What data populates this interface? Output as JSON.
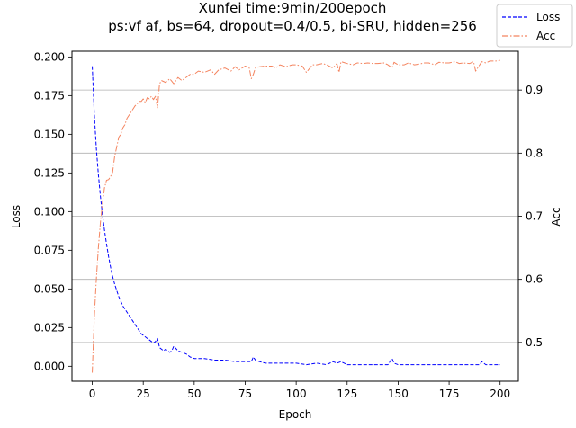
{
  "chart_data": {
    "type": "line",
    "title": "Xunfei time:9min/200epoch",
    "subtitle": "ps:vf af, bs=64, dropout=0.4/0.5, bi-SRU, hidden=256",
    "xlabel": "Epoch",
    "ylabel_left": "Loss",
    "ylabel_right": "Acc",
    "xlim": [
      -9.95,
      208.95
    ],
    "ylim_left": [
      -0.0097,
      0.2037
    ],
    "ylim_right": [
      0.4385,
      0.9615
    ],
    "x_ticks": [
      "0",
      "25",
      "50",
      "75",
      "100",
      "125",
      "150",
      "175",
      "200"
    ],
    "y_ticks_left": [
      "0.000",
      "0.025",
      "0.050",
      "0.075",
      "0.100",
      "0.125",
      "0.150",
      "0.175",
      "0.200"
    ],
    "y_ticks_right": [
      "0.5",
      "0.6",
      "0.7",
      "0.8",
      "0.9"
    ],
    "grid": "right-axis horizontal only",
    "legend_position": "top-right",
    "series": [
      {
        "name": "Loss",
        "axis": "left",
        "color": "#0000ff",
        "style": "dashed",
        "x": [
          0,
          1,
          2,
          3,
          4,
          5,
          6,
          7,
          8,
          9,
          10,
          11,
          12,
          13,
          14,
          15,
          16,
          17,
          18,
          19,
          20,
          21,
          22,
          23,
          24,
          25,
          26,
          27,
          28,
          29,
          30,
          31,
          32,
          33,
          34,
          35,
          36,
          37,
          38,
          39,
          40,
          42,
          44,
          46,
          48,
          50,
          55,
          60,
          65,
          70,
          75,
          78,
          79,
          80,
          82,
          85,
          90,
          95,
          100,
          105,
          110,
          115,
          118,
          120,
          122,
          125,
          130,
          135,
          140,
          145,
          146,
          147,
          148,
          150,
          155,
          160,
          165,
          170,
          175,
          180,
          185,
          190,
          191,
          192,
          193,
          195,
          200
        ],
        "values": [
          0.194,
          0.163,
          0.141,
          0.124,
          0.11,
          0.098,
          0.088,
          0.079,
          0.071,
          0.064,
          0.058,
          0.053,
          0.049,
          0.045,
          0.042,
          0.039,
          0.037,
          0.035,
          0.033,
          0.031,
          0.029,
          0.027,
          0.025,
          0.023,
          0.021,
          0.02,
          0.019,
          0.018,
          0.017,
          0.016,
          0.015,
          0.016,
          0.018,
          0.012,
          0.011,
          0.01,
          0.011,
          0.01,
          0.009,
          0.01,
          0.013,
          0.01,
          0.009,
          0.008,
          0.006,
          0.005,
          0.005,
          0.004,
          0.004,
          0.003,
          0.003,
          0.003,
          0.006,
          0.004,
          0.003,
          0.002,
          0.002,
          0.002,
          0.002,
          0.001,
          0.002,
          0.001,
          0.003,
          0.002,
          0.003,
          0.001,
          0.001,
          0.001,
          0.001,
          0.001,
          0.003,
          0.005,
          0.002,
          0.001,
          0.001,
          0.001,
          0.001,
          0.001,
          0.001,
          0.001,
          0.001,
          0.001,
          0.003,
          0.002,
          0.001,
          0.001,
          0.001
        ]
      },
      {
        "name": "Acc",
        "axis": "right",
        "color": "#f4845f",
        "style": "dash-dot",
        "x": [
          0,
          1,
          2,
          3,
          4,
          5,
          6,
          7,
          8,
          9,
          10,
          11,
          12,
          13,
          14,
          15,
          16,
          17,
          18,
          19,
          20,
          21,
          22,
          23,
          24,
          25,
          26,
          27,
          28,
          29,
          30,
          31,
          32,
          33,
          34,
          36,
          38,
          40,
          42,
          44,
          46,
          48,
          50,
          52,
          55,
          58,
          60,
          62,
          65,
          68,
          70,
          72,
          75,
          77,
          78,
          79,
          80,
          82,
          85,
          88,
          90,
          92,
          95,
          98,
          100,
          103,
          105,
          108,
          110,
          113,
          115,
          118,
          120,
          121,
          122,
          125,
          128,
          130,
          133,
          135,
          138,
          140,
          143,
          145,
          147,
          148,
          150,
          153,
          155,
          158,
          160,
          163,
          165,
          168,
          170,
          173,
          175,
          178,
          180,
          182,
          185,
          187,
          188,
          190,
          191,
          193,
          195,
          198,
          200
        ],
        "values": [
          0.452,
          0.54,
          0.6,
          0.65,
          0.69,
          0.72,
          0.745,
          0.757,
          0.758,
          0.763,
          0.77,
          0.795,
          0.81,
          0.825,
          0.83,
          0.84,
          0.845,
          0.855,
          0.86,
          0.865,
          0.87,
          0.875,
          0.878,
          0.882,
          0.882,
          0.886,
          0.88,
          0.888,
          0.886,
          0.89,
          0.885,
          0.89,
          0.872,
          0.91,
          0.915,
          0.912,
          0.918,
          0.91,
          0.92,
          0.915,
          0.92,
          0.925,
          0.925,
          0.93,
          0.928,
          0.932,
          0.925,
          0.932,
          0.935,
          0.93,
          0.937,
          0.932,
          0.938,
          0.935,
          0.918,
          0.925,
          0.935,
          0.937,
          0.938,
          0.938,
          0.935,
          0.94,
          0.937,
          0.94,
          0.94,
          0.938,
          0.928,
          0.94,
          0.94,
          0.942,
          0.94,
          0.935,
          0.942,
          0.928,
          0.945,
          0.942,
          0.94,
          0.943,
          0.942,
          0.943,
          0.942,
          0.942,
          0.943,
          0.94,
          0.935,
          0.944,
          0.94,
          0.94,
          0.943,
          0.94,
          0.941,
          0.943,
          0.943,
          0.94,
          0.944,
          0.943,
          0.943,
          0.945,
          0.942,
          0.943,
          0.942,
          0.945,
          0.93,
          0.94,
          0.945,
          0.943,
          0.946,
          0.946,
          0.947
        ]
      }
    ]
  }
}
